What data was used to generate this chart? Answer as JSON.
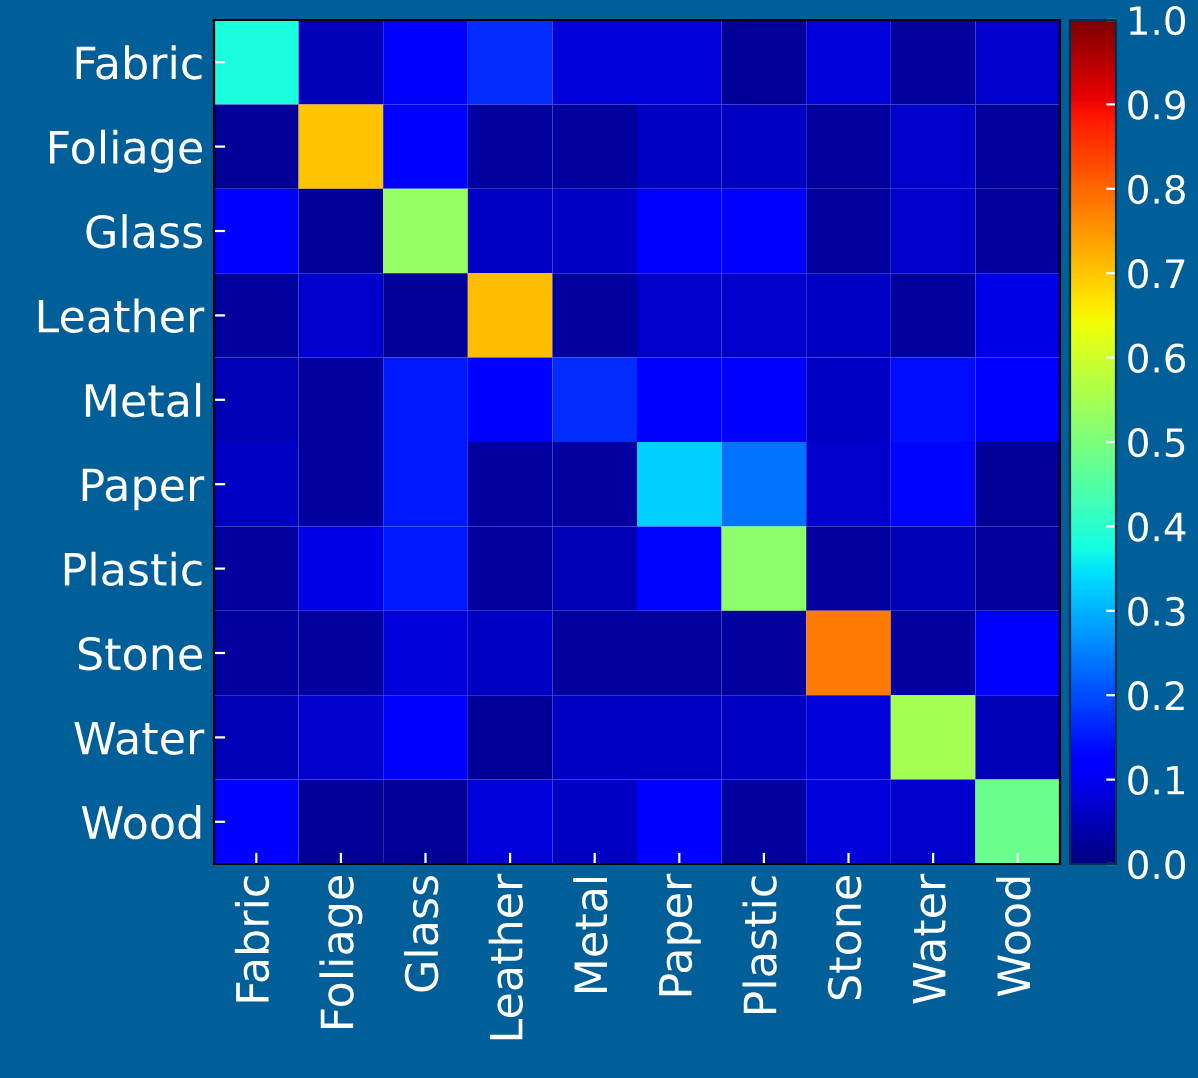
{
  "chart_data": {
    "type": "heatmap",
    "categories": [
      "Fabric",
      "Foliage",
      "Glass",
      "Leather",
      "Metal",
      "Paper",
      "Plastic",
      "Stone",
      "Water",
      "Wood"
    ],
    "y_categories": [
      "Fabric",
      "Foliage",
      "Glass",
      "Leather",
      "Metal",
      "Paper",
      "Plastic",
      "Stone",
      "Water",
      "Wood"
    ],
    "cells": [
      [
        0.38,
        0.05,
        0.12,
        0.17,
        0.08,
        0.08,
        0.02,
        0.08,
        0.03,
        0.07
      ],
      [
        0.02,
        0.7,
        0.12,
        0.03,
        0.03,
        0.06,
        0.06,
        0.03,
        0.07,
        0.03
      ],
      [
        0.12,
        0.02,
        0.53,
        0.06,
        0.06,
        0.12,
        0.12,
        0.03,
        0.07,
        0.03
      ],
      [
        0.03,
        0.07,
        0.02,
        0.71,
        0.03,
        0.07,
        0.07,
        0.06,
        0.03,
        0.09
      ],
      [
        0.05,
        0.03,
        0.15,
        0.12,
        0.17,
        0.11,
        0.11,
        0.06,
        0.14,
        0.11
      ],
      [
        0.06,
        0.03,
        0.15,
        0.03,
        0.03,
        0.33,
        0.24,
        0.07,
        0.13,
        0.02
      ],
      [
        0.03,
        0.09,
        0.15,
        0.03,
        0.05,
        0.13,
        0.52,
        0.03,
        0.05,
        0.03
      ],
      [
        0.03,
        0.03,
        0.08,
        0.06,
        0.03,
        0.03,
        0.03,
        0.78,
        0.03,
        0.12
      ],
      [
        0.05,
        0.07,
        0.12,
        0.02,
        0.06,
        0.06,
        0.06,
        0.08,
        0.55,
        0.05
      ],
      [
        0.12,
        0.02,
        0.02,
        0.08,
        0.06,
        0.12,
        0.03,
        0.08,
        0.07,
        0.48
      ]
    ],
    "clim": [
      0.0,
      1.0
    ],
    "cticks": [
      {
        "value": 0,
        "label": "0.0"
      },
      0.1,
      0.2,
      0.3,
      0.4,
      0.5,
      0.6,
      0.7,
      0.8,
      0.9,
      {
        "value": 1,
        "label": "1.0"
      }
    ]
  }
}
